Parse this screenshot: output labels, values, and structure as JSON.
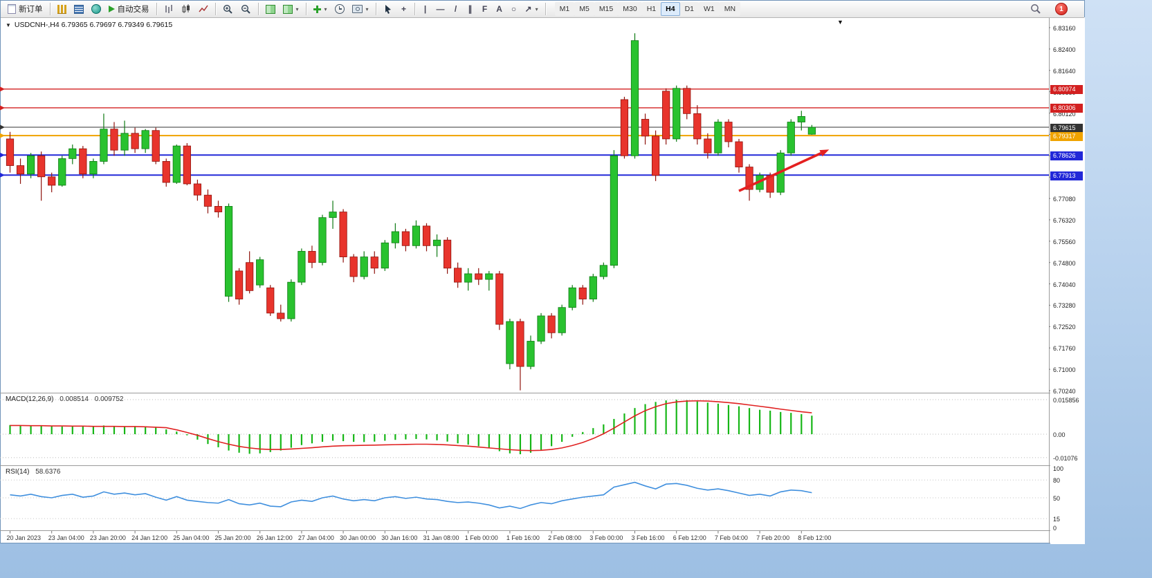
{
  "toolbar": {
    "new_order_label": "新订单",
    "auto_trading_label": "自动交易",
    "timeframes": [
      "M1",
      "M5",
      "M15",
      "M30",
      "H1",
      "H4",
      "D1",
      "W1",
      "MN"
    ],
    "active_timeframe": "H4",
    "notification_count": "1"
  },
  "icons": {
    "caret_down": "▾",
    "shift_marker": "▼",
    "symbol_toggle": "▼",
    "crosshair": "+",
    "vline": "|",
    "hline": "—",
    "trendline": "/",
    "channel": "∥",
    "fibonacci": "F",
    "text_tool": "A",
    "shapes": "○",
    "arrows": "↗"
  },
  "chart": {
    "symbol_line": "USDCNH-,H4 6.79365 6.79697 6.79349 6.79615",
    "price_ticks": [
      "6.83160",
      "6.82400",
      "6.81640",
      "6.80880",
      "6.80120",
      "6.79360",
      "6.78600",
      "6.77840",
      "6.77080",
      "6.76320",
      "6.75560",
      "6.74800",
      "6.74040",
      "6.73280",
      "6.72520",
      "6.71760",
      "6.71000",
      "6.70240"
    ],
    "levels": [
      {
        "name": "resistance-line-1",
        "price": 6.80974,
        "label": "6.80974",
        "color": "#d32020",
        "width": 1.4
      },
      {
        "name": "resistance-line-2",
        "price": 6.80306,
        "label": "6.80306",
        "color": "#d32020",
        "width": 1.4
      },
      {
        "name": "bid-price-line",
        "price": 6.79615,
        "label": "6.79615",
        "color": "#333333",
        "width": 1
      },
      {
        "name": "pivot-line",
        "price": 6.79317,
        "label": "6.79317",
        "color": "#f0a300",
        "width": 2
      },
      {
        "name": "support-line-1",
        "price": 6.78626,
        "label": "6.78626",
        "color": "#2228d8",
        "width": 2
      },
      {
        "name": "support-line-2",
        "price": 6.77913,
        "label": "6.77913",
        "color": "#2228d8",
        "width": 2
      }
    ]
  },
  "macd": {
    "label": "MACD(12,26,9)",
    "value": "0.008514",
    "signal": "0.009752",
    "axis": [
      {
        "label": "0.015856",
        "value": 0.015856
      },
      {
        "label": "0.00",
        "value": 0
      },
      {
        "label": "-0.01076",
        "value": -0.01076
      }
    ]
  },
  "rsi": {
    "label": "RSI(14)",
    "value": "58.6376",
    "axis": [
      {
        "label": "100",
        "value": 100
      },
      {
        "label": "80",
        "value": 80
      },
      {
        "label": "50",
        "value": 50
      },
      {
        "label": "15",
        "value": 15
      },
      {
        "label": "0",
        "value": 0
      }
    ],
    "levels": [
      80,
      50,
      15
    ]
  },
  "chart_data": {
    "type": "candlestick",
    "symbol": "USDCNH-",
    "timeframe": "H4",
    "current": {
      "open": 6.79365,
      "high": 6.79697,
      "low": 6.79349,
      "close": 6.79615
    },
    "ylim": [
      6.7024,
      6.8316
    ],
    "x_labels": [
      "20 Jan 2023",
      "23 Jan 04:00",
      "23 Jan 20:00",
      "24 Jan 12:00",
      "25 Jan 04:00",
      "25 Jan 20:00",
      "26 Jan 12:00",
      "27 Jan 04:00",
      "30 Jan 00:00",
      "30 Jan 16:00",
      "31 Jan 08:00",
      "1 Feb 00:00",
      "1 Feb 16:00",
      "2 Feb 08:00",
      "3 Feb 00:00",
      "3 Feb 16:00",
      "6 Feb 12:00",
      "7 Feb 04:00",
      "7 Feb 20:00",
      "8 Feb 12:00"
    ],
    "bars_per_label": 4,
    "up_color": "#29c22f",
    "down_color": "#e8342c",
    "ohlc": [
      [
        6.792,
        6.7945,
        6.78,
        6.7825
      ],
      [
        6.7825,
        6.785,
        6.776,
        6.7795
      ],
      [
        6.7795,
        6.787,
        6.778,
        6.786
      ],
      [
        6.786,
        6.7875,
        6.77,
        6.7785
      ],
      [
        6.7785,
        6.78,
        6.773,
        6.7755
      ],
      [
        6.7755,
        6.786,
        6.775,
        6.785
      ],
      [
        6.785,
        6.79,
        6.783,
        6.7885
      ],
      [
        6.7885,
        6.7895,
        6.778,
        6.7795
      ],
      [
        6.7795,
        6.785,
        6.778,
        6.784
      ],
      [
        6.784,
        6.801,
        6.783,
        6.7955
      ],
      [
        6.7955,
        6.798,
        6.786,
        6.788
      ],
      [
        6.788,
        6.7985,
        6.786,
        6.794
      ],
      [
        6.794,
        6.796,
        6.787,
        6.7885
      ],
      [
        6.7885,
        6.7955,
        6.787,
        6.795
      ],
      [
        6.795,
        6.796,
        6.783,
        6.784
      ],
      [
        6.784,
        6.785,
        6.775,
        6.7765
      ],
      [
        6.7765,
        6.79,
        6.776,
        6.7895
      ],
      [
        6.7895,
        6.7905,
        6.7755,
        6.776
      ],
      [
        6.776,
        6.7775,
        6.77,
        6.772
      ],
      [
        6.772,
        6.774,
        6.7655,
        6.768
      ],
      [
        6.768,
        6.77,
        6.764,
        6.766
      ],
      [
        6.736,
        6.769,
        6.734,
        6.768
      ],
      [
        6.745,
        6.746,
        6.733,
        6.735
      ],
      [
        6.748,
        6.752,
        6.737,
        6.738
      ],
      [
        6.74,
        6.75,
        6.739,
        6.749
      ],
      [
        6.739,
        6.74,
        6.729,
        6.73
      ],
      [
        6.73,
        6.733,
        6.727,
        6.728
      ],
      [
        6.728,
        6.742,
        6.727,
        6.741
      ],
      [
        6.741,
        6.753,
        6.74,
        6.752
      ],
      [
        6.752,
        6.754,
        6.746,
        6.748
      ],
      [
        6.748,
        6.765,
        6.747,
        6.764
      ],
      [
        6.764,
        6.77,
        6.76,
        6.766
      ],
      [
        6.766,
        6.767,
        6.748,
        6.75
      ],
      [
        6.75,
        6.751,
        6.741,
        6.743
      ],
      [
        6.743,
        6.752,
        6.742,
        6.75
      ],
      [
        6.75,
        6.752,
        6.744,
        6.746
      ],
      [
        6.746,
        6.756,
        6.745,
        6.755
      ],
      [
        6.755,
        6.762,
        6.753,
        6.759
      ],
      [
        6.759,
        6.76,
        6.752,
        6.754
      ],
      [
        6.754,
        6.763,
        6.753,
        6.761
      ],
      [
        6.761,
        6.762,
        6.752,
        6.754
      ],
      [
        6.754,
        6.758,
        6.75,
        6.756
      ],
      [
        6.756,
        6.757,
        6.744,
        6.746
      ],
      [
        6.746,
        6.748,
        6.739,
        6.741
      ],
      [
        6.741,
        6.746,
        6.738,
        6.744
      ],
      [
        6.744,
        6.746,
        6.74,
        6.742
      ],
      [
        6.742,
        6.745,
        6.738,
        6.744
      ],
      [
        6.744,
        6.745,
        6.724,
        6.726
      ],
      [
        6.712,
        6.728,
        6.71,
        6.727
      ],
      [
        6.727,
        6.728,
        6.7025,
        6.711
      ],
      [
        6.711,
        6.722,
        6.71,
        6.72
      ],
      [
        6.72,
        6.73,
        6.719,
        6.729
      ],
      [
        6.729,
        6.73,
        6.721,
        6.723
      ],
      [
        6.723,
        6.733,
        6.722,
        6.732
      ],
      [
        6.732,
        6.74,
        6.731,
        6.739
      ],
      [
        6.739,
        6.74,
        6.733,
        6.735
      ],
      [
        6.735,
        6.744,
        6.734,
        6.743
      ],
      [
        6.743,
        6.748,
        6.742,
        6.747
      ],
      [
        6.747,
        6.788,
        6.746,
        6.786
      ],
      [
        6.806,
        6.807,
        6.785,
        6.786
      ],
      [
        6.786,
        6.8296,
        6.785,
        6.827
      ],
      [
        6.799,
        6.801,
        6.79,
        6.793
      ],
      [
        6.793,
        6.795,
        6.777,
        6.779
      ],
      [
        6.809,
        6.81,
        6.79,
        6.792
      ],
      [
        6.792,
        6.811,
        6.791,
        6.81
      ],
      [
        6.81,
        6.811,
        6.799,
        6.801
      ],
      [
        6.801,
        6.804,
        6.79,
        6.792
      ],
      [
        6.792,
        6.794,
        6.785,
        6.787
      ],
      [
        6.787,
        6.799,
        6.786,
        6.798
      ],
      [
        6.798,
        6.799,
        6.789,
        6.791
      ],
      [
        6.791,
        6.792,
        6.78,
        6.782
      ],
      [
        6.782,
        6.783,
        6.77,
        6.774
      ],
      [
        6.774,
        6.78,
        6.773,
        6.779
      ],
      [
        6.779,
        6.78,
        6.771,
        6.773
      ],
      [
        6.773,
        6.788,
        6.772,
        6.787
      ],
      [
        6.787,
        6.799,
        6.786,
        6.798
      ],
      [
        6.798,
        6.802,
        6.795,
        6.8
      ],
      [
        6.79365,
        6.79697,
        6.79349,
        6.79615
      ]
    ],
    "indicators": {
      "macd": {
        "histogram": [
          0.0042,
          0.004,
          0.0038,
          0.004,
          0.0037,
          0.0035,
          0.0036,
          0.0038,
          0.0036,
          0.004,
          0.0038,
          0.0036,
          0.0037,
          0.0035,
          0.003,
          0.0022,
          0.0012,
          -0.0005,
          -0.0025,
          -0.0045,
          -0.006,
          -0.0075,
          -0.0085,
          -0.009,
          -0.0088,
          -0.0082,
          -0.0075,
          -0.0062,
          -0.005,
          -0.0042,
          -0.0035,
          -0.003,
          -0.0032,
          -0.0035,
          -0.0036,
          -0.0034,
          -0.003,
          -0.0026,
          -0.0024,
          -0.0022,
          -0.0024,
          -0.0028,
          -0.0034,
          -0.0042,
          -0.0048,
          -0.0055,
          -0.0065,
          -0.0078,
          -0.0088,
          -0.0092,
          -0.0085,
          -0.0072,
          -0.0055,
          -0.0035,
          -0.0012,
          0.001,
          0.0028,
          0.0045,
          0.007,
          0.0095,
          0.012,
          0.0138,
          0.0148,
          0.0155,
          0.0158,
          0.0156,
          0.015,
          0.0145,
          0.014,
          0.0134,
          0.0128,
          0.012,
          0.0112,
          0.0108,
          0.0102,
          0.0098,
          0.0092,
          0.0085
        ],
        "signal": [
          0.004,
          0.004,
          0.0039,
          0.0039,
          0.0038,
          0.0038,
          0.0037,
          0.0037,
          0.0036,
          0.0036,
          0.0036,
          0.0035,
          0.0035,
          0.0034,
          0.0032,
          0.003,
          0.002,
          0.0008,
          -0.0005,
          -0.002,
          -0.0034,
          -0.0046,
          -0.0056,
          -0.0063,
          -0.0068,
          -0.007,
          -0.007,
          -0.0068,
          -0.0065,
          -0.0062,
          -0.0058,
          -0.0055,
          -0.0053,
          -0.0052,
          -0.0051,
          -0.005,
          -0.0049,
          -0.0048,
          -0.0047,
          -0.0046,
          -0.0046,
          -0.0047,
          -0.0049,
          -0.0052,
          -0.0055,
          -0.0059,
          -0.0063,
          -0.0067,
          -0.0071,
          -0.0074,
          -0.0075,
          -0.0074,
          -0.007,
          -0.0063,
          -0.0052,
          -0.0038,
          -0.002,
          0.0002,
          0.0028,
          0.0056,
          0.0084,
          0.0108,
          0.0126,
          0.014,
          0.0148,
          0.0152,
          0.0153,
          0.0152,
          0.0149,
          0.0145,
          0.014,
          0.0134,
          0.0128,
          0.0122,
          0.0115,
          0.0109,
          0.0103,
          0.0098
        ]
      },
      "rsi": {
        "values": [
          55,
          53,
          56,
          52,
          50,
          54,
          56,
          51,
          53,
          60,
          56,
          58,
          55,
          57,
          51,
          46,
          52,
          46,
          44,
          42,
          41,
          47,
          40,
          38,
          41,
          36,
          35,
          43,
          46,
          44,
          50,
          53,
          48,
          45,
          47,
          45,
          50,
          52,
          49,
          51,
          48,
          47,
          44,
          42,
          43,
          41,
          38,
          33,
          36,
          32,
          38,
          42,
          40,
          45,
          48,
          51,
          53,
          55,
          68,
          72,
          76,
          70,
          65,
          73,
          74,
          71,
          66,
          63,
          65,
          62,
          58,
          54,
          56,
          53,
          60,
          63,
          62,
          58.6
        ]
      }
    },
    "annotations": [
      {
        "type": "arrow",
        "color": "#e42020",
        "from_x_bar": 70,
        "to_x_bar": 76,
        "from_price": 6.7735,
        "to_price": 6.787
      }
    ]
  }
}
